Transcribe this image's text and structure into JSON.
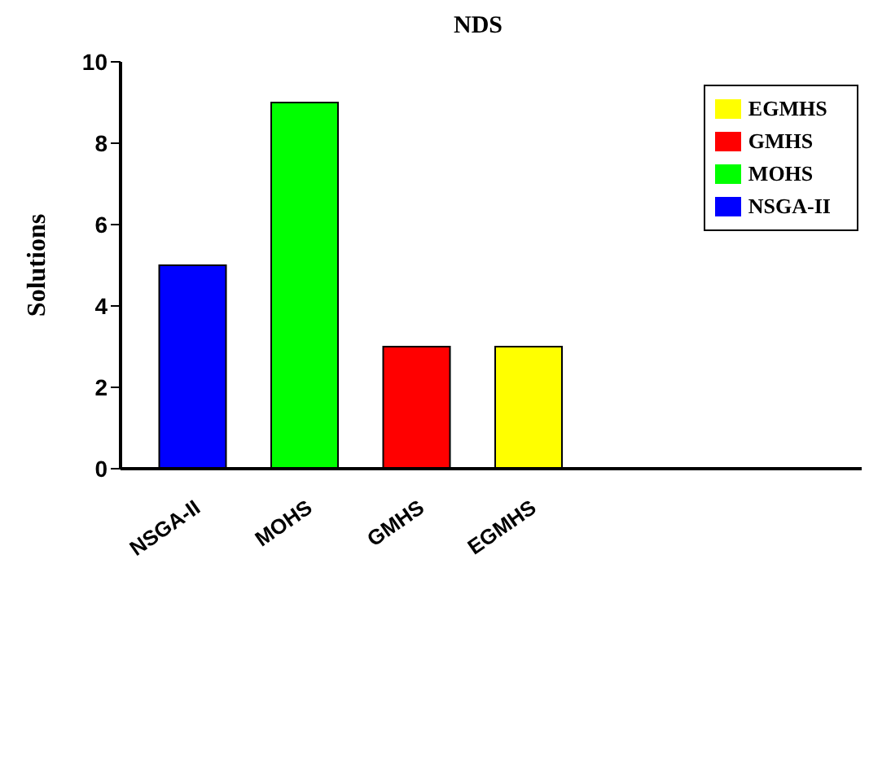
{
  "chart_data": {
    "type": "bar",
    "title": "NDS",
    "ylabel": "Solutions",
    "categories": [
      "NSGA-II",
      "MOHS",
      "GMHS",
      "EGMHS"
    ],
    "series": [
      {
        "name": "NSGA-II",
        "color": "#0000ff",
        "values": [
          5,
          null,
          null,
          null
        ]
      },
      {
        "name": "MOHS",
        "color": "#00ff00",
        "values": [
          null,
          9,
          null,
          null
        ]
      },
      {
        "name": "GMHS",
        "color": "#ff0000",
        "values": [
          null,
          null,
          3,
          null
        ]
      },
      {
        "name": "EGMHS",
        "color": "#ffff00",
        "values": [
          null,
          null,
          null,
          3
        ]
      }
    ],
    "stacked": true,
    "ylim": [
      0,
      10
    ],
    "yticks": [
      0,
      2,
      4,
      6,
      8,
      10
    ],
    "grid": false,
    "legend": "top right"
  }
}
